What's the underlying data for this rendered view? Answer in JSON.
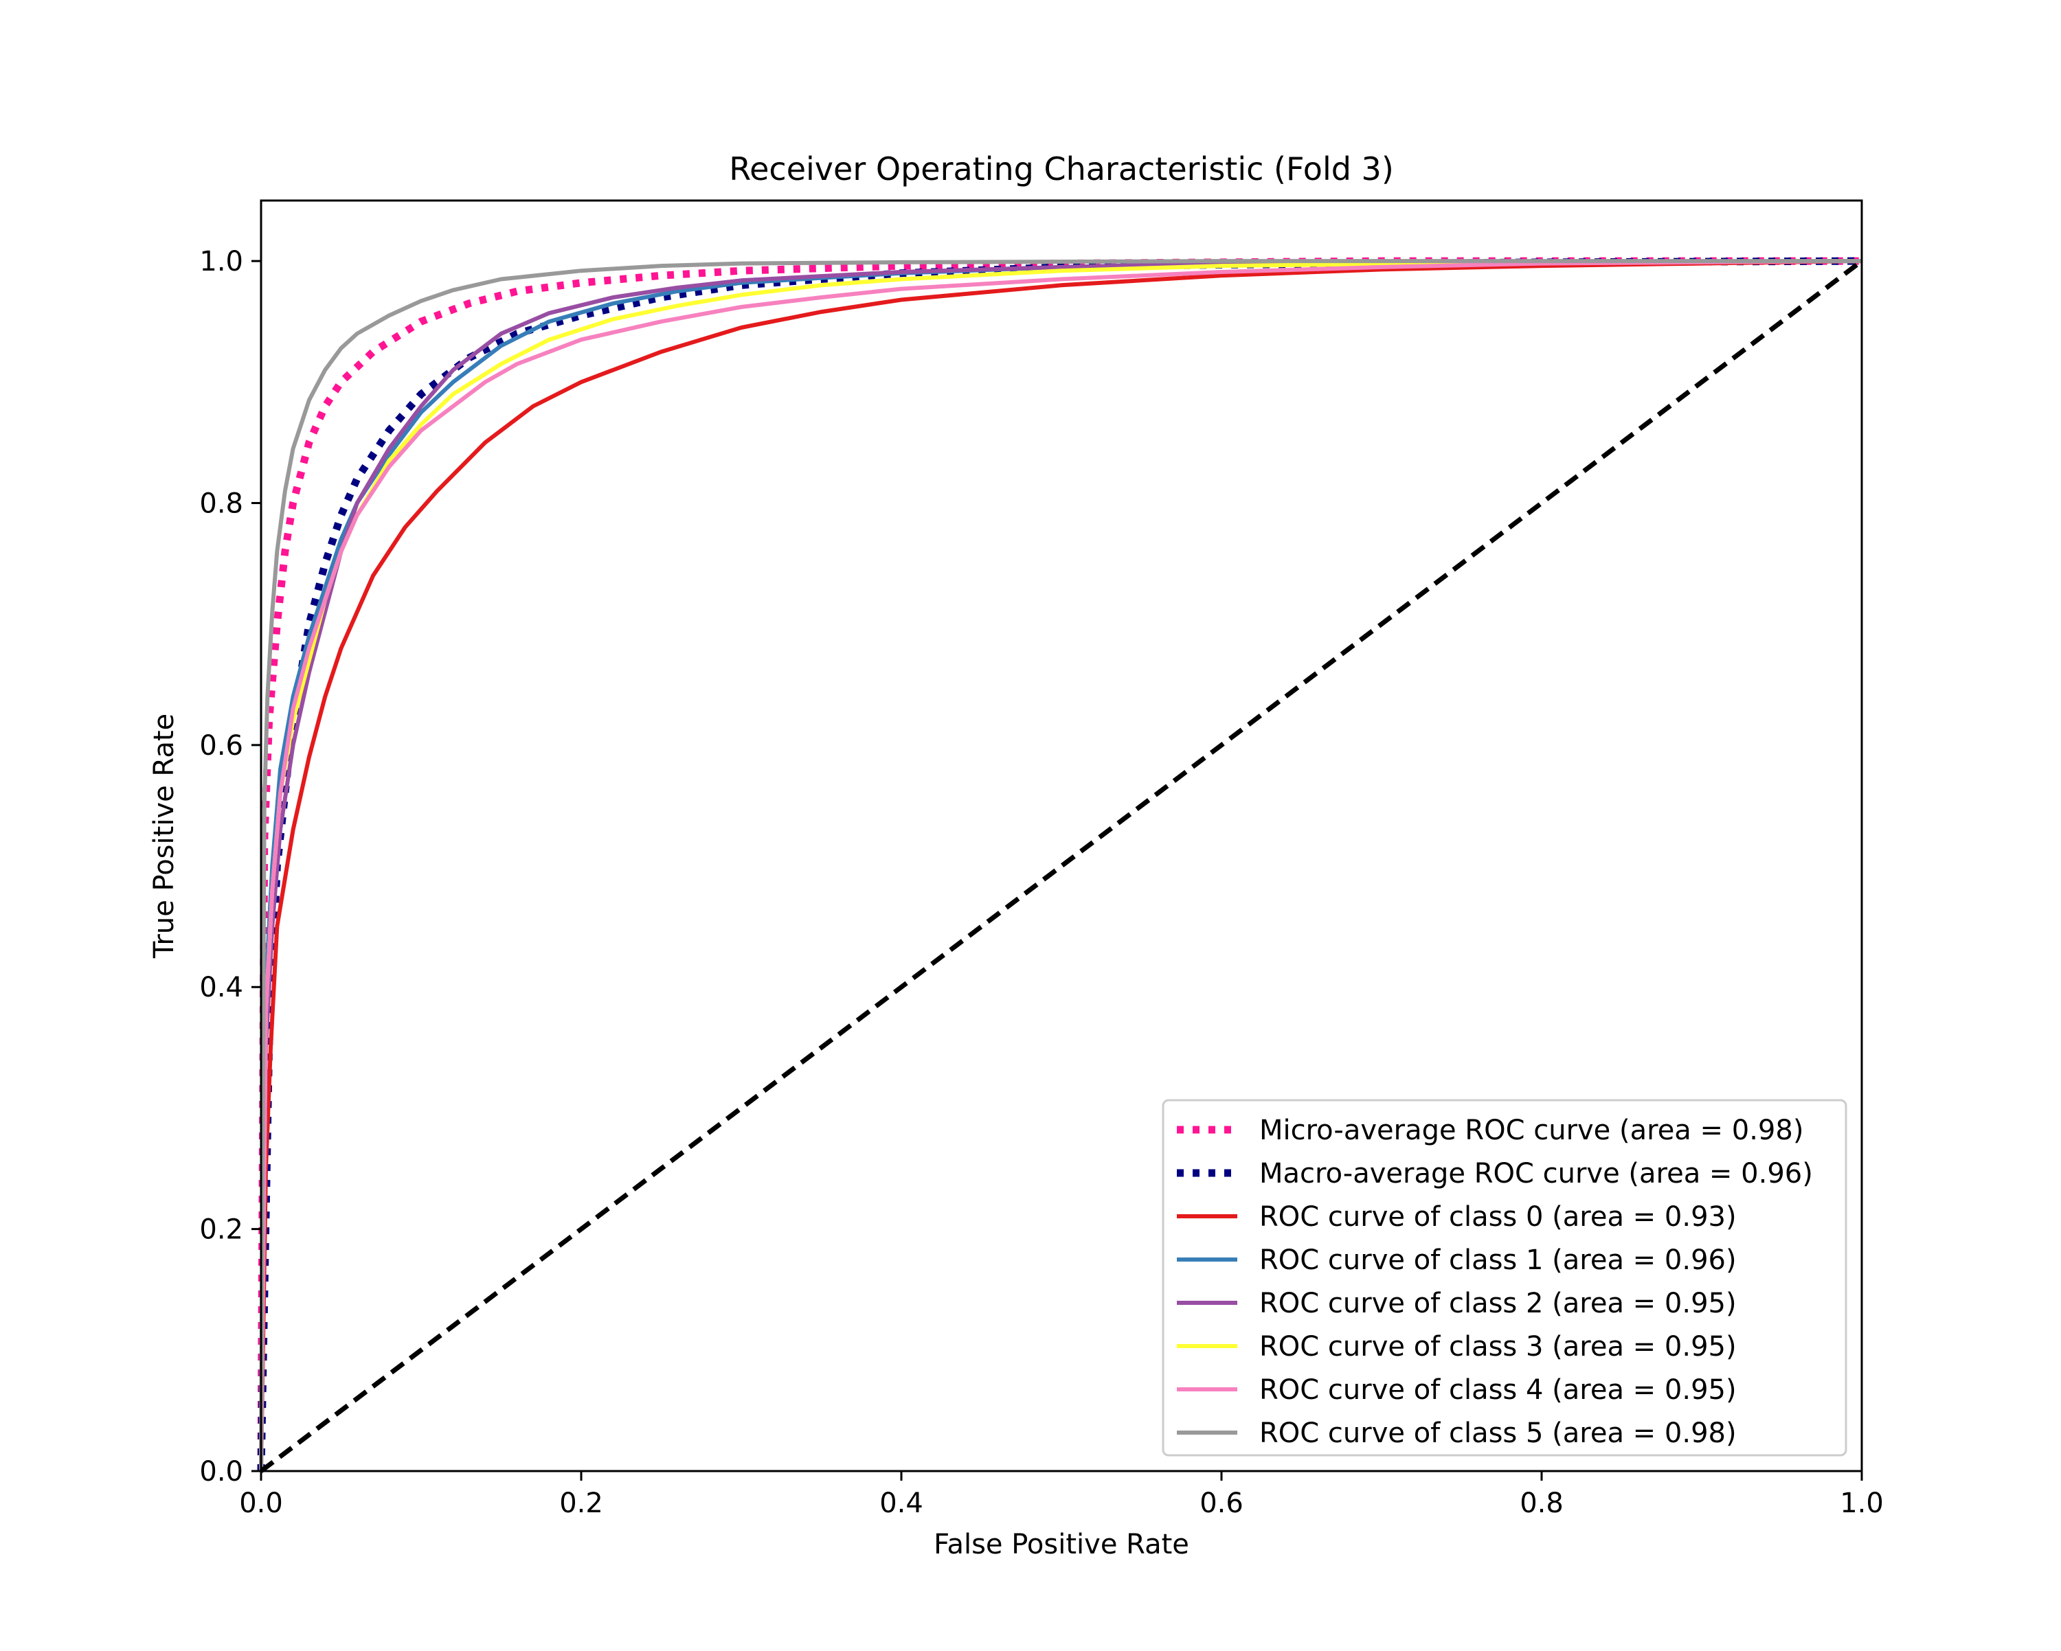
{
  "chart_data": {
    "type": "line",
    "title": "Receiver Operating Characteristic (Fold 3)",
    "xlabel": "False Positive Rate",
    "ylabel": "True Positive Rate",
    "xlim": [
      0.0,
      1.0
    ],
    "ylim": [
      0.0,
      1.05
    ],
    "xticks": [
      "0.0",
      "0.2",
      "0.4",
      "0.6",
      "0.8",
      "1.0"
    ],
    "yticks": [
      "0.0",
      "0.2",
      "0.4",
      "0.6",
      "0.8",
      "1.0"
    ],
    "xtick_values": [
      0.0,
      0.2,
      0.4,
      0.6,
      0.8,
      1.0
    ],
    "ytick_values": [
      0.0,
      0.2,
      0.4,
      0.6,
      0.8,
      1.0
    ],
    "grid": false,
    "legend_position": "lower-right",
    "series": [
      {
        "name": "Micro-average ROC curve (area = 0.98)",
        "color": "#ff1493",
        "style": "dotted",
        "x": [
          0.0,
          0.002,
          0.005,
          0.01,
          0.015,
          0.02,
          0.03,
          0.04,
          0.05,
          0.07,
          0.1,
          0.13,
          0.16,
          0.2,
          0.25,
          0.3,
          0.4,
          0.5,
          0.7,
          1.0
        ],
        "y": [
          0.0,
          0.52,
          0.62,
          0.7,
          0.76,
          0.8,
          0.85,
          0.88,
          0.9,
          0.925,
          0.95,
          0.965,
          0.975,
          0.982,
          0.988,
          0.992,
          0.996,
          0.998,
          1.0,
          1.0
        ]
      },
      {
        "name": "Macro-average ROC curve (area = 0.96)",
        "color": "#000080",
        "style": "dotted",
        "x": [
          0.0,
          0.005,
          0.01,
          0.02,
          0.03,
          0.04,
          0.05,
          0.06,
          0.08,
          0.1,
          0.13,
          0.16,
          0.2,
          0.25,
          0.3,
          0.4,
          0.5,
          0.6,
          0.8,
          1.0
        ],
        "y": [
          0.0,
          0.35,
          0.5,
          0.62,
          0.7,
          0.75,
          0.79,
          0.82,
          0.86,
          0.89,
          0.92,
          0.94,
          0.955,
          0.97,
          0.98,
          0.99,
          0.995,
          0.997,
          0.999,
          1.0
        ]
      },
      {
        "name": "ROC curve of class 0 (area = 0.93)",
        "color": "#e41a1c",
        "style": "solid",
        "x": [
          0.0,
          0.003,
          0.006,
          0.01,
          0.02,
          0.03,
          0.04,
          0.05,
          0.07,
          0.09,
          0.11,
          0.14,
          0.17,
          0.2,
          0.25,
          0.3,
          0.35,
          0.4,
          0.5,
          0.6,
          0.7,
          0.8,
          0.9,
          1.0
        ],
        "y": [
          0.0,
          0.25,
          0.35,
          0.45,
          0.53,
          0.59,
          0.64,
          0.68,
          0.74,
          0.78,
          0.81,
          0.85,
          0.88,
          0.9,
          0.925,
          0.945,
          0.958,
          0.968,
          0.98,
          0.988,
          0.993,
          0.996,
          0.998,
          1.0
        ]
      },
      {
        "name": "ROC curve of class 1 (area = 0.96)",
        "color": "#377eb8",
        "style": "solid",
        "x": [
          0.0,
          0.003,
          0.007,
          0.012,
          0.02,
          0.03,
          0.04,
          0.05,
          0.06,
          0.08,
          0.1,
          0.12,
          0.15,
          0.18,
          0.22,
          0.26,
          0.3,
          0.4,
          0.5,
          0.6,
          0.8,
          1.0
        ],
        "y": [
          0.0,
          0.4,
          0.5,
          0.58,
          0.64,
          0.69,
          0.73,
          0.77,
          0.8,
          0.84,
          0.875,
          0.9,
          0.93,
          0.95,
          0.965,
          0.975,
          0.982,
          0.99,
          0.995,
          0.998,
          0.999,
          1.0
        ]
      },
      {
        "name": "ROC curve of class 2 (area = 0.95)",
        "color": "#984ea3",
        "style": "solid",
        "x": [
          0.0,
          0.003,
          0.007,
          0.012,
          0.02,
          0.03,
          0.04,
          0.05,
          0.06,
          0.08,
          0.1,
          0.12,
          0.15,
          0.18,
          0.22,
          0.26,
          0.3,
          0.4,
          0.5,
          0.6,
          0.8,
          1.0
        ],
        "y": [
          0.0,
          0.35,
          0.45,
          0.53,
          0.6,
          0.66,
          0.71,
          0.76,
          0.8,
          0.845,
          0.88,
          0.91,
          0.94,
          0.957,
          0.97,
          0.978,
          0.984,
          0.991,
          0.995,
          0.998,
          0.999,
          1.0
        ]
      },
      {
        "name": "ROC curve of class 3 (area = 0.95)",
        "color": "#ffff33",
        "style": "solid",
        "x": [
          0.0,
          0.003,
          0.007,
          0.012,
          0.02,
          0.03,
          0.04,
          0.05,
          0.06,
          0.08,
          0.1,
          0.12,
          0.15,
          0.18,
          0.22,
          0.26,
          0.3,
          0.35,
          0.4,
          0.5,
          0.6,
          0.8,
          1.0
        ],
        "y": [
          0.0,
          0.38,
          0.48,
          0.56,
          0.62,
          0.67,
          0.72,
          0.76,
          0.79,
          0.835,
          0.865,
          0.89,
          0.915,
          0.935,
          0.952,
          0.963,
          0.972,
          0.98,
          0.985,
          0.992,
          0.996,
          0.999,
          1.0
        ]
      },
      {
        "name": "ROC curve of class 4 (area = 0.95)",
        "color": "#f781bf",
        "style": "solid",
        "x": [
          0.0,
          0.003,
          0.007,
          0.012,
          0.02,
          0.03,
          0.04,
          0.05,
          0.06,
          0.08,
          0.1,
          0.12,
          0.14,
          0.16,
          0.2,
          0.25,
          0.3,
          0.35,
          0.4,
          0.5,
          0.6,
          0.7,
          0.8,
          1.0
        ],
        "y": [
          0.0,
          0.38,
          0.48,
          0.56,
          0.63,
          0.68,
          0.72,
          0.76,
          0.79,
          0.83,
          0.86,
          0.88,
          0.9,
          0.915,
          0.935,
          0.95,
          0.962,
          0.97,
          0.977,
          0.985,
          0.991,
          0.995,
          0.998,
          1.0
        ]
      },
      {
        "name": "ROC curve of class 5 (area = 0.98)",
        "color": "#999999",
        "style": "solid",
        "x": [
          0.0,
          0.002,
          0.004,
          0.007,
          0.01,
          0.015,
          0.02,
          0.025,
          0.03,
          0.04,
          0.05,
          0.06,
          0.08,
          0.1,
          0.12,
          0.15,
          0.2,
          0.25,
          0.3,
          0.4,
          0.6,
          1.0
        ],
        "y": [
          0.0,
          0.55,
          0.64,
          0.71,
          0.76,
          0.81,
          0.845,
          0.865,
          0.885,
          0.91,
          0.928,
          0.94,
          0.955,
          0.967,
          0.976,
          0.985,
          0.992,
          0.996,
          0.998,
          0.999,
          1.0,
          1.0
        ]
      },
      {
        "name": "",
        "color": "#000000",
        "style": "dashed",
        "x": [
          0.0,
          1.0
        ],
        "y": [
          0.0,
          1.0
        ]
      }
    ]
  }
}
